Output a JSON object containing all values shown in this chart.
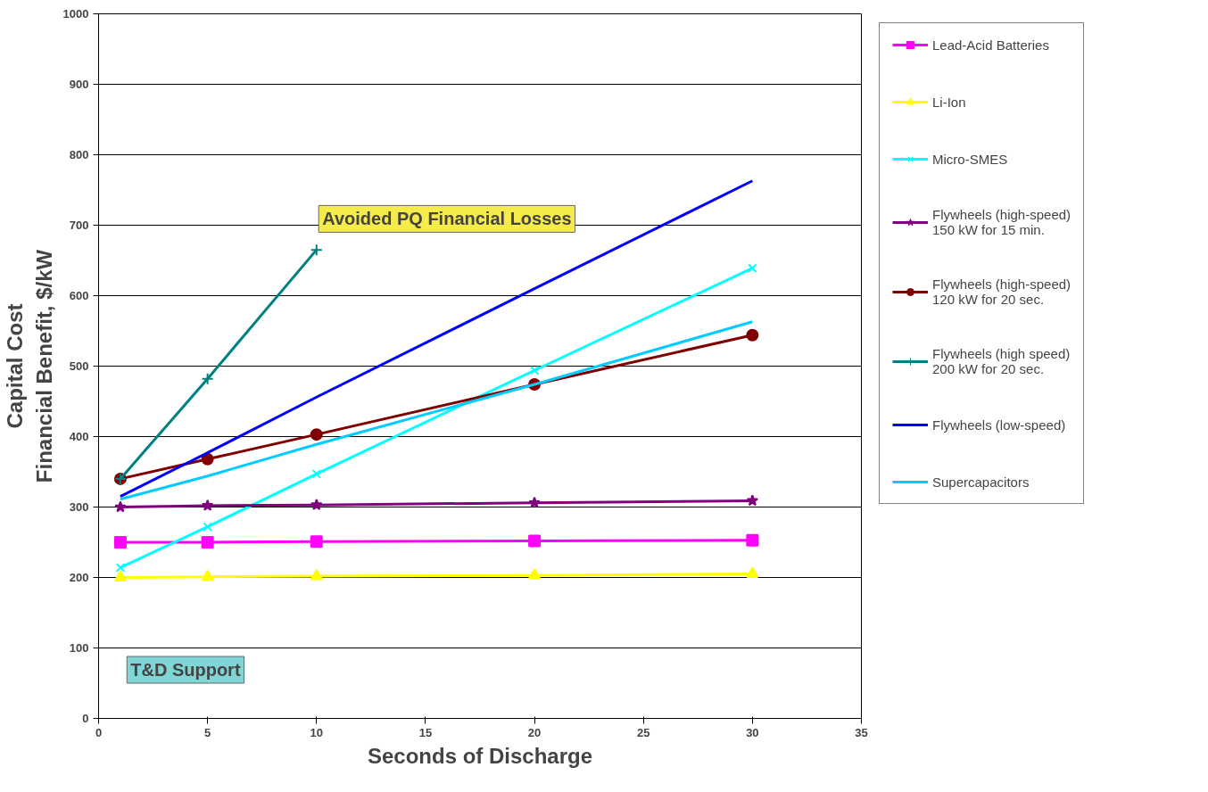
{
  "chart_data": {
    "type": "line",
    "xlabel": "Seconds of Discharge",
    "ylabel": "Capital Cost\nFinancial Benefit, $/kW",
    "x": [
      1,
      5,
      10,
      20,
      30
    ],
    "xlim": [
      0,
      35
    ],
    "xticks": [
      0,
      5,
      10,
      15,
      20,
      25,
      30,
      35
    ],
    "ylim": [
      0,
      1000
    ],
    "yticks": [
      0,
      100,
      200,
      300,
      400,
      500,
      600,
      700,
      800,
      900,
      1000
    ],
    "grid": "y",
    "legend": "right",
    "line_style": "solid",
    "annotations": [
      "Avoided PQ Financial Losses",
      "T&D Support"
    ],
    "series": [
      {
        "name": "Lead-Acid Batteries",
        "color": "#ff00ff",
        "marker": "square",
        "values": [
          250,
          250,
          251,
          252,
          253
        ]
      },
      {
        "name": "Li-Ion",
        "color": "#ffff00",
        "marker": "triangle",
        "values": [
          200,
          201,
          202,
          203,
          205
        ]
      },
      {
        "name": "Micro-SMES",
        "color": "#00ffff",
        "marker": "x",
        "values": [
          214,
          272,
          347,
          494,
          639
        ]
      },
      {
        "name": "Flywheels (high-speed)\n150 kW for 15 min.",
        "color": "#800080",
        "marker": "star",
        "values": [
          300,
          302,
          303,
          306,
          309
        ]
      },
      {
        "name": "Flywheels (high-speed)\n120 kW for 20 sec.",
        "color": "#800000",
        "marker": "circle",
        "values": [
          340,
          368,
          403,
          474,
          544
        ]
      },
      {
        "name": "Flywheels (high speed)\n200 kW for 20 sec.",
        "color": "#008080",
        "marker": "cross",
        "x": [
          1,
          5,
          10
        ],
        "values": [
          340,
          482,
          665
        ]
      },
      {
        "name": "Flywheels (low-speed)",
        "color": "#0000ff",
        "marker": "none",
        "values": [
          315,
          377,
          456,
          610,
          763
        ]
      },
      {
        "name": "Supercapacitors",
        "color": "#00ccff",
        "marker": "none",
        "values": [
          311,
          344,
          389,
          474,
          563
        ]
      }
    ]
  }
}
